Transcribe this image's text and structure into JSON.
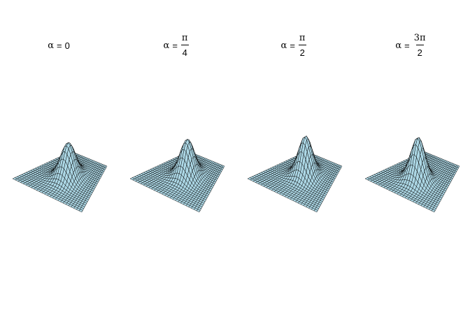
{
  "panels": [
    {
      "alpha_symbol": "α",
      "equals": "=",
      "value": "0",
      "fraction": null
    },
    {
      "alpha_symbol": "α",
      "equals": "=",
      "value": null,
      "fraction": {
        "numerator": "π",
        "denominator": "4"
      }
    },
    {
      "alpha_symbol": "α",
      "equals": "=",
      "value": null,
      "fraction": {
        "numerator": "π",
        "denominator": "2"
      }
    },
    {
      "alpha_symbol": "α",
      "equals": "=",
      "value": null,
      "fraction": {
        "numerator": "3π",
        "denominator": "2"
      }
    }
  ],
  "colors": {
    "surface_fill": "#add8e6",
    "mesh_line": "#000000"
  }
}
